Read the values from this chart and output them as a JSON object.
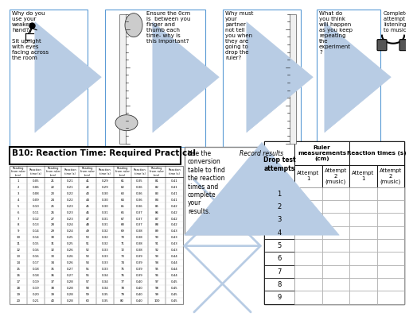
{
  "bg_color": "#ffffff",
  "title": "B10: Reaction Time: Required Practical",
  "conversion_text": "Use the\nconversion\ntable to find\nthe reaction\ntimes and\ncomplete\nyour\nresults.",
  "conversion_table_cols": [
    "Reading\nfrom ruler\n(cm)",
    "Reaction\ntime (s)",
    "Reading\nfrom ruler\n(cm)",
    "Reaction\ntime (s)",
    "Reading\nfrom ruler\n(cm)",
    "Reaction\ntime (s)",
    "Reading\nfrom ruler\n(cm)",
    "Reaction\ntime (s)",
    "Reading\nfrom ruler\n(cm)",
    "Reaction\ntime (s)"
  ],
  "conversion_data": [
    [
      1,
      0.05,
      21,
      0.21,
      41,
      0.29,
      61,
      0.35,
      81,
      0.41
    ],
    [
      2,
      0.06,
      22,
      0.21,
      42,
      0.29,
      62,
      0.36,
      82,
      0.41
    ],
    [
      3,
      0.08,
      23,
      0.22,
      43,
      0.3,
      63,
      0.36,
      83,
      0.41
    ],
    [
      4,
      0.09,
      24,
      0.22,
      44,
      0.3,
      64,
      0.36,
      84,
      0.41
    ],
    [
      5,
      0.1,
      25,
      0.23,
      45,
      0.3,
      65,
      0.36,
      85,
      0.42
    ],
    [
      6,
      0.11,
      26,
      0.23,
      46,
      0.31,
      66,
      0.37,
      86,
      0.42
    ],
    [
      7,
      0.12,
      27,
      0.23,
      47,
      0.31,
      67,
      0.37,
      87,
      0.42
    ],
    [
      8,
      0.13,
      28,
      0.24,
      48,
      0.31,
      68,
      0.37,
      88,
      0.42
    ],
    [
      9,
      0.14,
      29,
      0.24,
      49,
      0.32,
      69,
      0.38,
      89,
      0.43
    ],
    [
      10,
      0.14,
      30,
      0.25,
      50,
      0.32,
      70,
      0.38,
      90,
      0.43
    ],
    [
      11,
      0.15,
      31,
      0.25,
      51,
      0.32,
      71,
      0.38,
      91,
      0.43
    ],
    [
      12,
      0.16,
      32,
      0.26,
      52,
      0.33,
      72,
      0.38,
      92,
      0.43
    ],
    [
      13,
      0.16,
      33,
      0.26,
      53,
      0.33,
      73,
      0.39,
      93,
      0.44
    ],
    [
      14,
      0.17,
      34,
      0.26,
      54,
      0.33,
      74,
      0.39,
      94,
      0.44
    ],
    [
      15,
      0.18,
      35,
      0.27,
      55,
      0.33,
      75,
      0.39,
      95,
      0.44
    ],
    [
      16,
      0.18,
      36,
      0.27,
      56,
      0.34,
      76,
      0.39,
      96,
      0.44
    ],
    [
      17,
      0.19,
      37,
      0.28,
      57,
      0.34,
      77,
      0.4,
      97,
      0.45
    ],
    [
      18,
      0.19,
      38,
      0.28,
      58,
      0.34,
      78,
      0.4,
      98,
      0.45
    ],
    [
      19,
      0.2,
      39,
      0.28,
      59,
      0.35,
      79,
      0.4,
      99,
      0.45
    ],
    [
      20,
      0.21,
      40,
      0.28,
      60,
      0.35,
      80,
      0.4,
      100,
      0.45
    ]
  ],
  "box1_text": "Why do you\nuse your\nweaker\nhand?\n\nSit upright\nwith eyes\nfacing across\nthe room",
  "box2_text": "Ensure the 0cm\nis  between you\nfinger and\nthumb each\ntime- why is\nthis important?",
  "box3_text": "Why must\nyour\npartner\nnot tell\nyou when\nthey are\ngoing to\ndrop the\nruler?",
  "box4_text": "What do\nyou think\nwill happen\nas you keep\nrepeating\nthe\nexperiment\n?",
  "box5_text": "Complete\nattempt 2\nlistening\nto music",
  "record_results": "Record results",
  "arrow_color": "#b8cce4",
  "box_edge_color": "#5b9bd5",
  "table_edge_color": "#000000"
}
